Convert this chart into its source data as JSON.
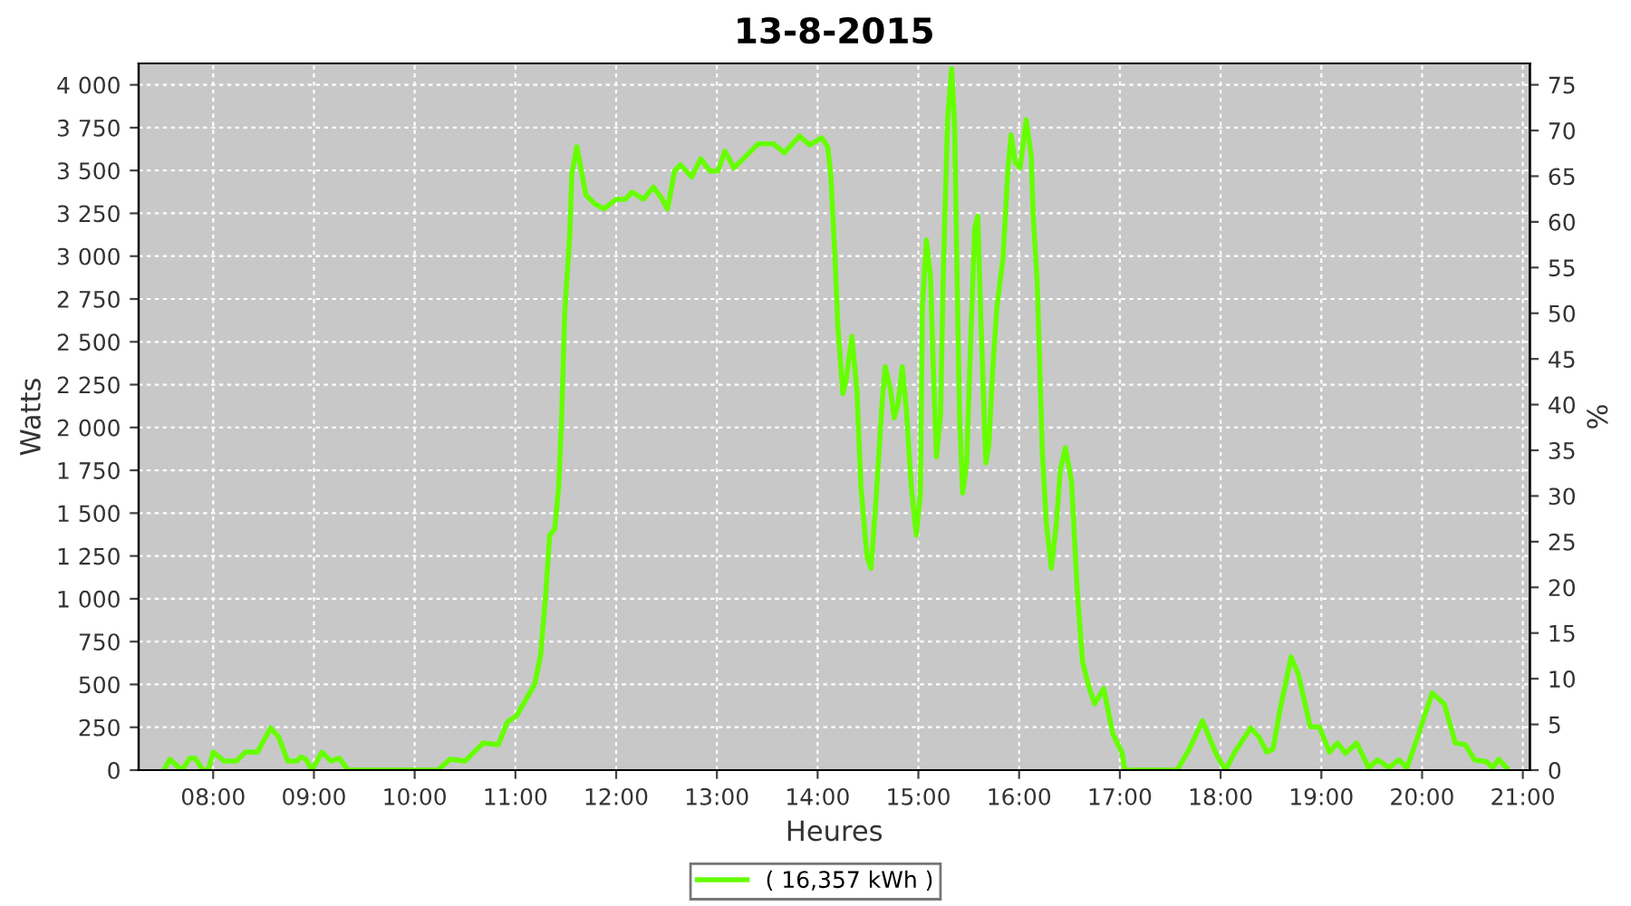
{
  "chart_data": {
    "type": "line",
    "title": "13-8-2015",
    "xlabel": "Heures",
    "ylabel": "Watts",
    "y2label": "%",
    "series": [
      {
        "name": "( 16,357 kWh )",
        "color": "#66ff00",
        "x": [
          7.51,
          7.57,
          7.69,
          7.77,
          7.82,
          7.9,
          7.95,
          8.0,
          8.11,
          8.23,
          8.32,
          8.44,
          8.57,
          8.65,
          8.74,
          8.83,
          8.87,
          8.92,
          8.98,
          9.08,
          9.17,
          9.25,
          9.34,
          10.23,
          10.35,
          10.5,
          10.68,
          10.83,
          10.92,
          11.01,
          11.19,
          11.25,
          11.3,
          11.34,
          11.39,
          11.43,
          11.46,
          11.49,
          11.54,
          11.56,
          11.61,
          11.7,
          11.79,
          11.88,
          12.0,
          12.09,
          12.16,
          12.27,
          12.37,
          12.45,
          12.51,
          12.58,
          12.64,
          12.75,
          12.84,
          12.93,
          13.01,
          13.08,
          13.17,
          13.41,
          13.56,
          13.67,
          13.82,
          13.92,
          14.04,
          14.1,
          14.13,
          14.17,
          14.2,
          14.25,
          14.28,
          14.34,
          14.39,
          14.43,
          14.49,
          14.53,
          14.58,
          14.64,
          14.67,
          14.72,
          14.76,
          14.8,
          14.84,
          14.88,
          14.93,
          14.98,
          15.02,
          15.04,
          15.08,
          15.12,
          15.15,
          15.18,
          15.22,
          15.25,
          15.29,
          15.33,
          15.36,
          15.38,
          15.41,
          15.44,
          15.48,
          15.52,
          15.56,
          15.59,
          15.62,
          15.67,
          15.7,
          15.74,
          15.78,
          15.84,
          15.89,
          15.92,
          15.96,
          16.01,
          16.07,
          16.12,
          16.14,
          16.18,
          16.23,
          16.27,
          16.32,
          16.37,
          16.41,
          16.46,
          16.52,
          16.58,
          16.63,
          16.69,
          16.75,
          16.84,
          16.93,
          17.02,
          17.05,
          17.57,
          17.69,
          17.82,
          17.96,
          18.05,
          18.14,
          18.3,
          18.38,
          18.46,
          18.52,
          18.59,
          18.7,
          18.77,
          18.89,
          18.98,
          19.08,
          19.16,
          19.24,
          19.35,
          19.47,
          19.56,
          19.67,
          19.77,
          19.85,
          19.95,
          20.1,
          20.22,
          20.33,
          20.43,
          20.52,
          20.64,
          20.7,
          20.76,
          20.84
        ],
        "values": [
          0,
          63,
          0,
          70,
          70,
          0,
          0,
          105,
          53,
          53,
          105,
          105,
          246,
          193,
          53,
          53,
          77,
          63,
          0,
          105,
          53,
          70,
          0,
          0,
          63,
          53,
          158,
          148,
          281,
          316,
          499,
          668,
          1019,
          1371,
          1406,
          1652,
          2074,
          2671,
          3128,
          3480,
          3638,
          3357,
          3304,
          3276,
          3332,
          3332,
          3374,
          3332,
          3403,
          3339,
          3276,
          3497,
          3533,
          3462,
          3568,
          3497,
          3497,
          3613,
          3515,
          3656,
          3656,
          3603,
          3701,
          3649,
          3691,
          3638,
          3480,
          3023,
          2601,
          2197,
          2267,
          2531,
          2214,
          1652,
          1248,
          1178,
          1582,
          2144,
          2355,
          2232,
          2056,
          2144,
          2355,
          2109,
          1652,
          1371,
          1617,
          2707,
          3093,
          2882,
          2320,
          1828,
          2074,
          2953,
          3796,
          4095,
          3761,
          3023,
          2039,
          1617,
          1793,
          2531,
          3164,
          3234,
          2636,
          1793,
          1898,
          2355,
          2707,
          2988,
          3515,
          3708,
          3550,
          3515,
          3796,
          3585,
          3234,
          2847,
          1863,
          1441,
          1178,
          1441,
          1757,
          1881,
          1687,
          1019,
          633,
          492,
          387,
          475,
          211,
          105,
          0,
          0,
          123,
          288,
          88,
          0,
          105,
          246,
          193,
          105,
          123,
          352,
          661,
          562,
          253,
          253,
          105,
          158,
          98,
          158,
          14,
          60,
          14,
          60,
          14,
          183,
          450,
          387,
          158,
          148,
          60,
          49,
          14,
          63,
          14
        ]
      }
    ],
    "xlim": [
      7.26,
      21.07
    ],
    "xticks": [
      {
        "value": 8,
        "label": "08:00"
      },
      {
        "value": 9,
        "label": "09:00"
      },
      {
        "value": 10,
        "label": "10:00"
      },
      {
        "value": 11,
        "label": "11:00"
      },
      {
        "value": 12,
        "label": "12:00"
      },
      {
        "value": 13,
        "label": "13:00"
      },
      {
        "value": 14,
        "label": "14:00"
      },
      {
        "value": 15,
        "label": "15:00"
      },
      {
        "value": 16,
        "label": "16:00"
      },
      {
        "value": 17,
        "label": "17:00"
      },
      {
        "value": 18,
        "label": "18:00"
      },
      {
        "value": 19,
        "label": "19:00"
      },
      {
        "value": 20,
        "label": "20:00"
      },
      {
        "value": 21,
        "label": "21:00"
      }
    ],
    "ylim": [
      0,
      4125
    ],
    "yticks": [
      0,
      250,
      500,
      750,
      {
        "value": 1000,
        "label": "1 000"
      },
      {
        "value": 1250,
        "label": "1 250"
      },
      {
        "value": 1500,
        "label": "1 500"
      },
      {
        "value": 1750,
        "label": "1 750"
      },
      {
        "value": 2000,
        "label": "2 000"
      },
      {
        "value": 2250,
        "label": "2 250"
      },
      {
        "value": 2500,
        "label": "2 500"
      },
      {
        "value": 2750,
        "label": "2 750"
      },
      {
        "value": 3000,
        "label": "3 000"
      },
      {
        "value": 3250,
        "label": "3 250"
      },
      {
        "value": 3500,
        "label": "3 500"
      },
      {
        "value": 3750,
        "label": "3 750"
      },
      {
        "value": 4000,
        "label": "4 000"
      }
    ],
    "y2lim": [
      0,
      77.34
    ],
    "y2ticks": [
      0,
      5,
      10,
      15,
      20,
      25,
      30,
      35,
      40,
      45,
      50,
      55,
      60,
      65,
      70,
      75
    ],
    "grid": true,
    "legend": "bottom",
    "marker": "none",
    "line_style": "solid"
  }
}
